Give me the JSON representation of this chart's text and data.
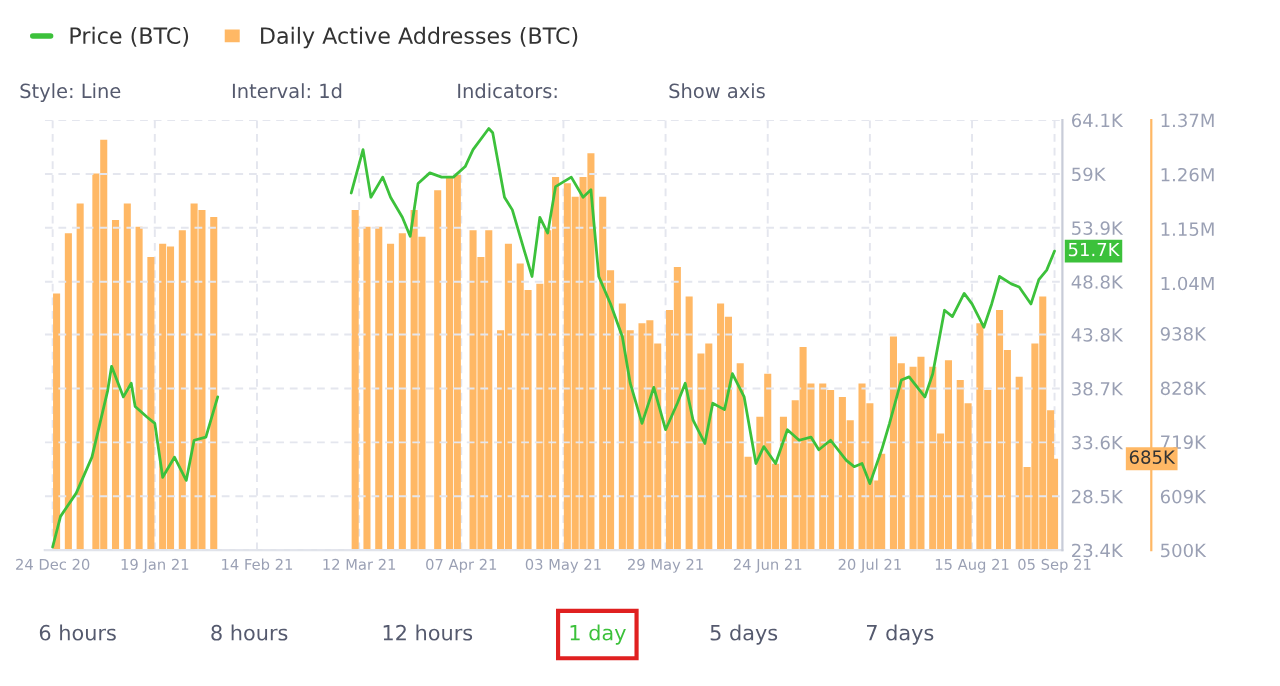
{
  "chart_data": {
    "type": "bar",
    "xlim": [
      "2020-12-22",
      "2021-09-07"
    ],
    "xticks": [
      {
        "value": "2020-12-24",
        "label": "24 Dec 20"
      },
      {
        "value": "2021-01-19",
        "label": "19 Jan 21"
      },
      {
        "value": "2021-02-14",
        "label": "14 Feb 21"
      },
      {
        "value": "2021-03-12",
        "label": "12 Mar 21"
      },
      {
        "value": "2021-04-07",
        "label": "07 Apr 21"
      },
      {
        "value": "2021-05-03",
        "label": "03 May 21"
      },
      {
        "value": "2021-05-29",
        "label": "29 May 21"
      },
      {
        "value": "2021-06-24",
        "label": "24 Jun 21"
      },
      {
        "value": "2021-07-20",
        "label": "20 Jul 21"
      },
      {
        "value": "2021-08-15",
        "label": "15 Aug 21"
      },
      {
        "value": "2021-09-05",
        "label": "05 Sep 21"
      }
    ],
    "ylim": [
      23400,
      64100
    ],
    "yticks": [
      {
        "value": 23400,
        "label": "23.4K"
      },
      {
        "value": 28500,
        "label": "28.5K"
      },
      {
        "value": 33600,
        "label": "33.6K"
      },
      {
        "value": 38700,
        "label": "38.7K"
      },
      {
        "value": 43800,
        "label": "43.8K"
      },
      {
        "value": 48800,
        "label": "48.8K"
      },
      {
        "value": 53900,
        "label": "53.9K"
      },
      {
        "value": 59000,
        "label": "59K"
      },
      {
        "value": 64100,
        "label": "64.1K"
      }
    ],
    "y2lim": [
      500000,
      1370000
    ],
    "y2ticks": [
      {
        "value": 500000,
        "label": "500K"
      },
      {
        "value": 609000,
        "label": "609K"
      },
      {
        "value": 719000,
        "label": "719K"
      },
      {
        "value": 828000,
        "label": "828K"
      },
      {
        "value": 938000,
        "label": "938K"
      },
      {
        "value": 1040000,
        "label": "1.04M"
      },
      {
        "value": 1150000,
        "label": "1.15M"
      },
      {
        "value": 1260000,
        "label": "1.26M"
      },
      {
        "value": 1370000,
        "label": "1.37M"
      }
    ],
    "grid": true,
    "legend": "top left",
    "series": [
      {
        "name": "Price (BTC)",
        "type": "line",
        "color": "#3cc13b",
        "x": [
          "2020-12-24",
          "2020-12-26",
          "2020-12-30",
          "2021-01-03",
          "2021-01-07",
          "2021-01-08",
          "2021-01-11",
          "2021-01-13",
          "2021-01-14",
          "2021-01-17",
          "2021-01-19",
          "2021-01-21",
          "2021-01-24",
          "2021-01-27",
          "2021-01-29",
          "2021-02-01",
          "2021-02-04",
          "2021-02-20",
          "2021-03-10",
          "2021-03-13",
          "2021-03-15",
          "2021-03-18",
          "2021-03-20",
          "2021-03-23",
          "2021-03-25",
          "2021-03-27",
          "2021-03-30",
          "2021-04-02",
          "2021-04-05",
          "2021-04-08",
          "2021-04-10",
          "2021-04-14",
          "2021-04-15",
          "2021-04-18",
          "2021-04-20",
          "2021-04-23",
          "2021-04-25",
          "2021-04-27",
          "2021-04-29",
          "2021-05-01",
          "2021-05-05",
          "2021-05-08",
          "2021-05-10",
          "2021-05-12",
          "2021-05-15",
          "2021-05-18",
          "2021-05-20",
          "2021-05-23",
          "2021-05-26",
          "2021-05-29",
          "2021-06-01",
          "2021-06-03",
          "2021-06-05",
          "2021-06-08",
          "2021-06-10",
          "2021-06-13",
          "2021-06-15",
          "2021-06-18",
          "2021-06-21",
          "2021-06-23",
          "2021-06-26",
          "2021-06-29",
          "2021-07-02",
          "2021-07-05",
          "2021-07-07",
          "2021-07-10",
          "2021-07-14",
          "2021-07-16",
          "2021-07-18",
          "2021-07-20",
          "2021-07-23",
          "2021-07-25",
          "2021-07-28",
          "2021-07-30",
          "2021-08-03",
          "2021-08-05",
          "2021-08-08",
          "2021-08-10",
          "2021-08-13",
          "2021-08-15",
          "2021-08-18",
          "2021-08-20",
          "2021-08-22",
          "2021-08-25",
          "2021-08-27",
          "2021-08-30",
          "2021-09-01",
          "2021-09-03",
          "2021-09-05"
        ],
        "values": [
          23700,
          26600,
          28800,
          32200,
          38500,
          40800,
          37900,
          39200,
          37000,
          36000,
          35400,
          30300,
          32200,
          30000,
          33800,
          34100,
          37900,
          null,
          57200,
          61300,
          56800,
          58700,
          56800,
          54900,
          53100,
          58100,
          59100,
          58700,
          58700,
          59700,
          61300,
          63300,
          62900,
          56800,
          55600,
          51800,
          49300,
          54900,
          53400,
          57800,
          58700,
          56800,
          57500,
          49300,
          46700,
          43600,
          39200,
          35400,
          38800,
          34800,
          37300,
          39200,
          35700,
          33500,
          37300,
          36700,
          40100,
          37900,
          31600,
          33200,
          31600,
          34800,
          33800,
          34100,
          32900,
          33800,
          31900,
          31300,
          31600,
          29700,
          32900,
          35400,
          39500,
          39800,
          37900,
          40100,
          46100,
          45500,
          47700,
          46700,
          44500,
          46700,
          49300,
          48600,
          48300,
          46700,
          49000,
          49900,
          51700
        ]
      },
      {
        "name": "Daily Active Addresses (BTC)",
        "axis": "y2",
        "color": "#ffb865",
        "x": [
          "2020-12-25",
          "2020-12-28",
          "2020-12-31",
          "2021-01-04",
          "2021-01-06",
          "2021-01-09",
          "2021-01-12",
          "2021-01-15",
          "2021-01-18",
          "2021-01-21",
          "2021-01-23",
          "2021-01-26",
          "2021-01-29",
          "2021-01-31",
          "2021-02-03",
          "2021-02-20",
          "2021-03-11",
          "2021-03-14",
          "2021-03-17",
          "2021-03-20",
          "2021-03-23",
          "2021-03-26",
          "2021-03-28",
          "2021-04-01",
          "2021-04-04",
          "2021-04-06",
          "2021-04-10",
          "2021-04-12",
          "2021-04-14",
          "2021-04-17",
          "2021-04-19",
          "2021-04-22",
          "2021-04-24",
          "2021-04-27",
          "2021-04-29",
          "2021-05-01",
          "2021-05-04",
          "2021-05-06",
          "2021-05-08",
          "2021-05-10",
          "2021-05-13",
          "2021-05-15",
          "2021-05-18",
          "2021-05-20",
          "2021-05-23",
          "2021-05-25",
          "2021-05-27",
          "2021-05-30",
          "2021-06-01",
          "2021-06-04",
          "2021-06-07",
          "2021-06-09",
          "2021-06-12",
          "2021-06-14",
          "2021-06-17",
          "2021-06-19",
          "2021-06-22",
          "2021-06-24",
          "2021-06-26",
          "2021-06-28",
          "2021-07-01",
          "2021-07-03",
          "2021-07-05",
          "2021-07-08",
          "2021-07-10",
          "2021-07-13",
          "2021-07-15",
          "2021-07-18",
          "2021-07-20",
          "2021-07-22",
          "2021-07-23",
          "2021-07-26",
          "2021-07-28",
          "2021-07-31",
          "2021-08-02",
          "2021-08-05",
          "2021-08-07",
          "2021-08-09",
          "2021-08-12",
          "2021-08-14",
          "2021-08-17",
          "2021-08-19",
          "2021-08-22",
          "2021-08-24",
          "2021-08-27",
          "2021-08-29",
          "2021-08-31",
          "2021-09-02",
          "2021-09-04",
          "2021-09-05"
        ],
        "values": [
          1019000,
          1141000,
          1201000,
          1262000,
          1330000,
          1168000,
          1201000,
          1154000,
          1093000,
          1120000,
          1114000,
          1147000,
          1201000,
          1188000,
          1174000,
          null,
          1188000,
          1154000,
          1154000,
          1120000,
          1141000,
          1188000,
          1134000,
          1228000,
          1255000,
          1262000,
          1147000,
          1093000,
          1147000,
          945000,
          1120000,
          1080000,
          1026000,
          1039000,
          1147000,
          1255000,
          1242000,
          1215000,
          1255000,
          1303000,
          1215000,
          1066000,
          999000,
          945000,
          959000,
          965000,
          918000,
          986000,
          1073000,
          1013000,
          898000,
          918000,
          999000,
          972000,
          878000,
          689000,
          770000,
          857000,
          675000,
          770000,
          803000,
          911000,
          837000,
          837000,
          824000,
          810000,
          763000,
          837000,
          797000,
          641000,
          695000,
          932000,
          878000,
          871000,
          891000,
          871000,
          736000,
          884000,
          844000,
          797000,
          959000,
          824000,
          986000,
          905000,
          851000,
          668000,
          918000,
          1013000,
          783000,
          685000
        ]
      }
    ],
    "annotations": [
      "51.7K",
      "685K",
      "Style: Line",
      "Interval: 1d",
      "Indicators:",
      "Show axis",
      "6 hours",
      "8 hours",
      "12 hours",
      "1 day",
      "5 days",
      "7 days"
    ]
  }
}
